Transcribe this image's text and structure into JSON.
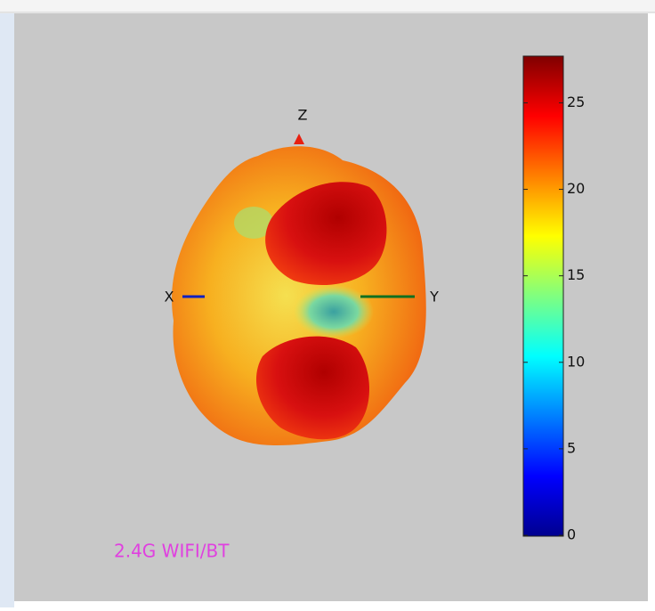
{
  "chart_data": {
    "type": "surface",
    "annotation": "2.4G WIFI/BT",
    "axis_labels": [
      "X",
      "Y",
      "Z"
    ],
    "clim": [
      0,
      27.7
    ],
    "cticks": [
      0,
      5,
      10,
      15,
      20,
      25
    ]
  }
}
